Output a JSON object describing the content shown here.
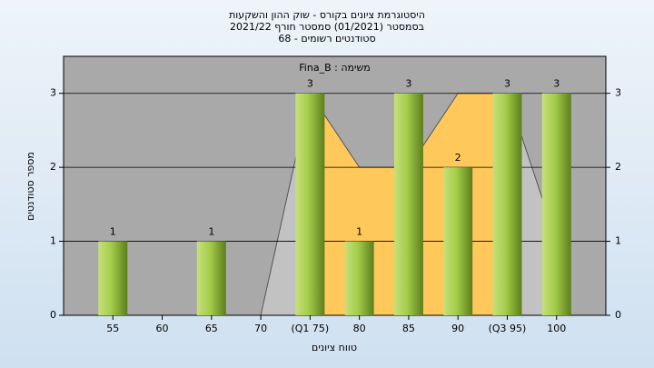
{
  "chart_data": {
    "type": "bar",
    "title": [
      "היסטוגרמת ציונים בקורס - שוק ההון והשקעות",
      "בסמסטר  (01/2021)  סמסטר חורף 2021/22",
      "סטודנטים רשומים - 68"
    ],
    "subtitle": "משימה : Fina_B",
    "x_label": "טווח ציונים",
    "y_label": "מספר סטודנטים",
    "categories": [
      "55",
      "60",
      "65",
      "70",
      "(Q1 75)",
      "80",
      "85",
      "90",
      "(Q3 95)",
      "100"
    ],
    "values": [
      1,
      0,
      1,
      0,
      3,
      1,
      3,
      2,
      3,
      3
    ],
    "area_values": [
      null,
      null,
      null,
      0,
      3,
      2,
      2,
      3,
      3,
      1
    ],
    "color": "#8fbf3a",
    "area_color": "#c2c2c2",
    "band_color": "#ffc85a",
    "plot_color": "#a9a9a9",
    "ylim": [
      0,
      3.5
    ],
    "yticks": [
      0,
      1,
      2,
      3
    ],
    "y2ticks": [
      0,
      1,
      2,
      3
    ],
    "grid": true
  }
}
